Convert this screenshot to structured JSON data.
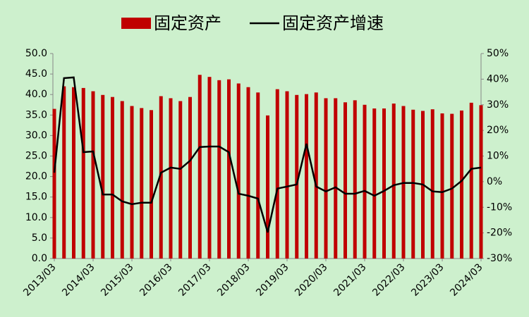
{
  "chart_data": {
    "type": "bar-line",
    "categories": [
      "2013/03",
      null,
      null,
      null,
      "2014/03",
      null,
      null,
      null,
      "2015/03",
      null,
      null,
      null,
      "2016/03",
      null,
      null,
      null,
      "2017/03",
      null,
      null,
      null,
      "2018/03",
      null,
      null,
      null,
      "2019/03",
      null,
      null,
      null,
      "2020/03",
      null,
      null,
      null,
      "2021/03",
      null,
      null,
      null,
      "2022/03",
      null,
      null,
      null,
      "2023/03",
      null,
      null,
      null,
      "2024/03"
    ],
    "series": [
      {
        "name": "固定资产",
        "type": "bar",
        "color": "#c00000",
        "values": [
          36.5,
          42.0,
          41.8,
          41.6,
          40.8,
          39.9,
          39.4,
          38.4,
          37.2,
          36.7,
          36.2,
          39.6,
          39.1,
          38.4,
          39.4,
          44.8,
          44.3,
          43.5,
          43.7,
          42.7,
          41.8,
          40.5,
          34.9,
          41.3,
          40.8,
          39.9,
          40.1,
          40.5,
          39.1,
          39.1,
          38.1,
          38.6,
          37.5,
          36.6,
          36.6,
          37.8,
          37.2,
          36.3,
          36.0,
          36.4,
          35.4,
          35.3,
          36.1,
          38.0,
          37.4
        ]
      },
      {
        "name": "固定资产增速",
        "type": "line",
        "color": "#000000",
        "axis": "y2",
        "values": [
          3.5,
          40.4,
          40.7,
          11.5,
          11.8,
          -5,
          -5,
          -7.7,
          -8.8,
          -8.2,
          -8.2,
          3.5,
          5.5,
          5,
          8.2,
          13.5,
          13.7,
          13.7,
          11.5,
          -4.7,
          -5.5,
          -6.6,
          -19.8,
          -2.7,
          -1.9,
          -1.1,
          14.8,
          -1.9,
          -3.8,
          -2.2,
          -4.7,
          -4.7,
          -3.6,
          -5.5,
          -3.6,
          -1.4,
          -0.5,
          -0.5,
          -1.1,
          -3.8,
          -4.1,
          -2.7,
          0.3,
          5,
          5.5
        ]
      }
    ],
    "ylim": [
      0,
      50
    ],
    "yticks": [
      {
        "value": 0,
        "label": "0.0"
      },
      {
        "value": 5,
        "label": "5.0"
      },
      {
        "value": 10,
        "label": "10.0"
      },
      {
        "value": 15,
        "label": "15.0"
      },
      {
        "value": 20,
        "label": "20.0"
      },
      {
        "value": 25,
        "label": "25.0"
      },
      {
        "value": 30,
        "label": "30.0"
      },
      {
        "value": 35,
        "label": "35.0"
      },
      {
        "value": 40,
        "label": "40.0"
      },
      {
        "value": 45,
        "label": "45.0"
      },
      {
        "value": 50,
        "label": "50.0"
      }
    ],
    "y2lim": [
      -30,
      50
    ],
    "y2ticks": [
      {
        "value": -30,
        "label": "-30%"
      },
      {
        "value": -20,
        "label": "-20%"
      },
      {
        "value": -10,
        "label": "-10%"
      },
      {
        "value": 0,
        "label": "0%"
      },
      {
        "value": 10,
        "label": "10%"
      },
      {
        "value": 20,
        "label": "20%"
      },
      {
        "value": 30,
        "label": "30%"
      },
      {
        "value": 40,
        "label": "40%"
      },
      {
        "value": 50,
        "label": "50%"
      }
    ],
    "legend": "top"
  }
}
